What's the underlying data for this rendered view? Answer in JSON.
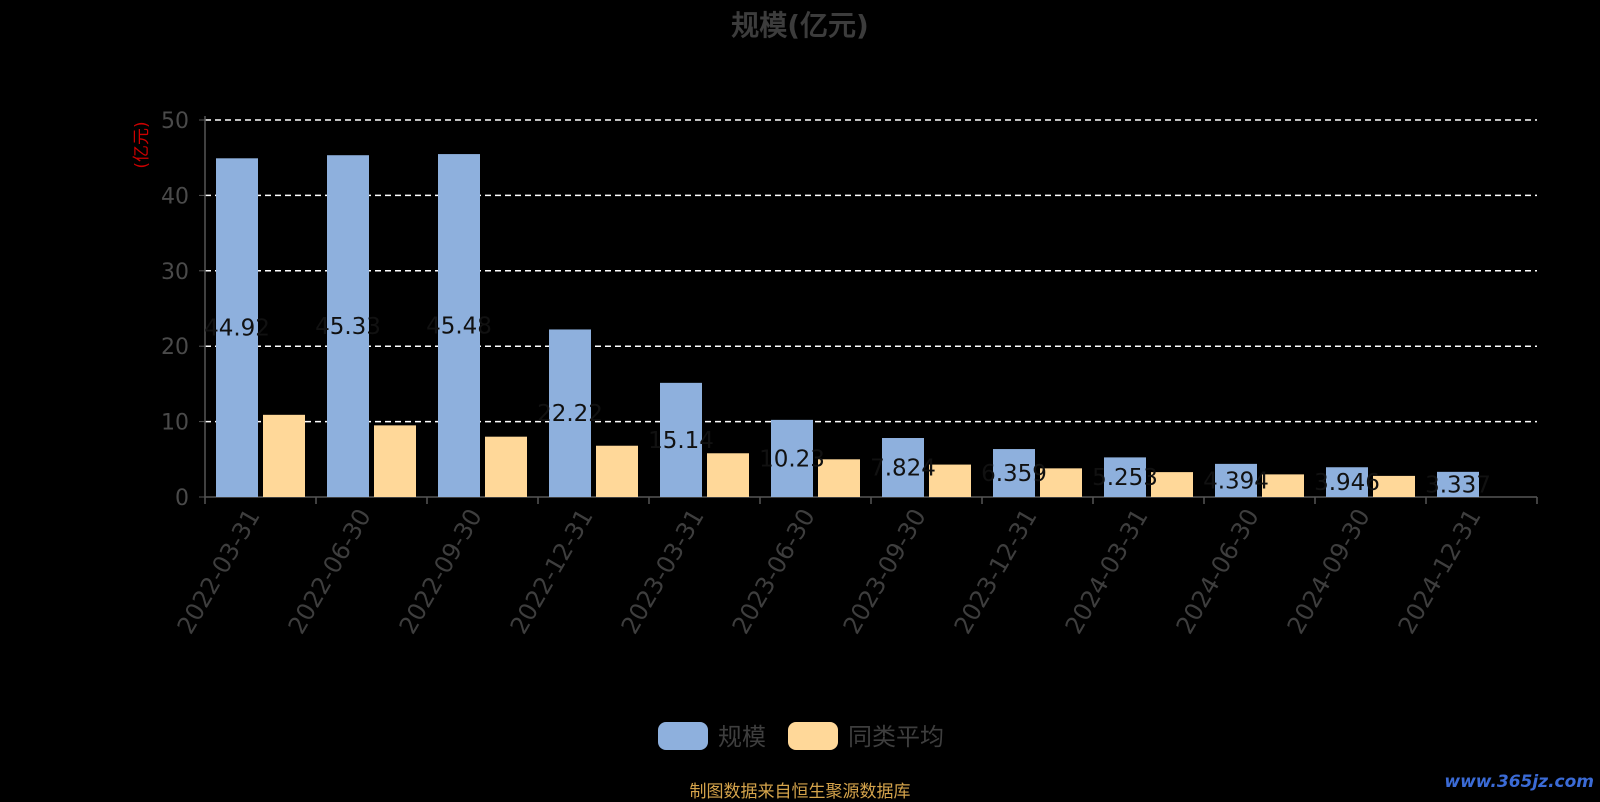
{
  "chart_data": {
    "type": "bar",
    "title": "规模(亿元)",
    "ylabel": "(亿元)",
    "ylim": [
      0,
      50
    ],
    "yticks": [
      0,
      10,
      20,
      30,
      40,
      50
    ],
    "grid": "dashed",
    "legend_position": "bottom-center",
    "categories": [
      "2022-03-31",
      "2022-06-30",
      "2022-09-30",
      "2022-12-31",
      "2023-03-31",
      "2023-06-30",
      "2023-09-30",
      "2023-12-31",
      "2024-03-31",
      "2024-06-30",
      "2024-09-30",
      "2024-12-31"
    ],
    "series": [
      {
        "name": "规模",
        "color": "#8eb0dd",
        "values": [
          44.92,
          45.33,
          45.48,
          22.22,
          15.14,
          10.23,
          7.824,
          6.359,
          5.253,
          4.394,
          3.946,
          3.337
        ],
        "labels": [
          "44.92",
          "45.33",
          "45.48",
          "22.22",
          "15.14",
          "10.23",
          "7.824",
          "6.359",
          "5.253",
          "4.394",
          "3.946",
          "3.337"
        ]
      },
      {
        "name": "同类平均",
        "color": "#ffd899",
        "values": [
          10.9,
          9.5,
          8.0,
          6.8,
          5.8,
          5.0,
          4.3,
          3.8,
          3.3,
          3.0,
          2.8,
          null
        ]
      }
    ]
  },
  "footer": {
    "source": "制图数据来自恒生聚源数据库",
    "watermark": "www.365jz.com"
  }
}
